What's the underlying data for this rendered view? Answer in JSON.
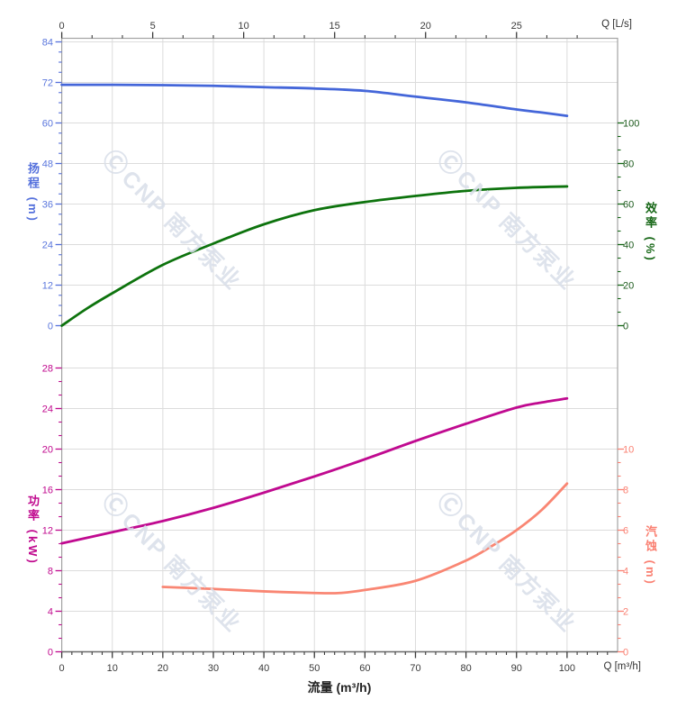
{
  "page": {
    "background": "#ffffff"
  },
  "watermark": {
    "logo_glyph": "Ⓒ",
    "text": "CNP 南方泵业",
    "color": "#d9dfe9"
  },
  "chart_data": {
    "type": "line",
    "title": "",
    "x_axis": {
      "bottom": {
        "title": "流量 (m³/h)",
        "unit_label": "Q [m³/h]",
        "major_ticks": [
          0,
          10,
          20,
          30,
          40,
          50,
          60,
          70,
          80,
          90,
          100
        ],
        "minor_step": 2,
        "range": [
          0,
          110
        ],
        "tick_color": "#3a3a3a",
        "label_color": "#3a3a3a"
      },
      "top": {
        "unit_label": "Q [L/s]",
        "major_ticks": [
          0,
          5,
          10,
          15,
          20,
          25
        ],
        "minor_step": 1.6667,
        "range": [
          0,
          30.6
        ],
        "ls_to_m3h": 3.6,
        "tick_color": "#3a3a3a",
        "label_color": "#3a3a3a"
      }
    },
    "panels": [
      {
        "name": "head-efficiency",
        "left_axis": {
          "title": "扬程 (m)",
          "quantity": "head",
          "unit": "m",
          "color": "#5470dc",
          "label_color": "#5b77dd",
          "major_ticks": [
            0,
            12,
            24,
            36,
            48,
            60,
            72,
            84
          ],
          "minor_step": 3,
          "range": [
            0,
            84
          ]
        },
        "right_axis": {
          "title": "效率 (%)",
          "quantity": "efficiency",
          "unit": "%",
          "color": "#156615",
          "label_color": "#1c5a1c",
          "major_ticks": [
            0,
            20,
            40,
            60,
            80,
            100
          ],
          "minor_step": 6.6667,
          "range": [
            0,
            100
          ]
        },
        "series": [
          {
            "name": "head",
            "axis": "left",
            "color": "#4466d9",
            "width": 2.8,
            "points": [
              [
                0,
                71.3
              ],
              [
                10,
                71.3
              ],
              [
                20,
                71.2
              ],
              [
                30,
                71.0
              ],
              [
                40,
                70.6
              ],
              [
                50,
                70.2
              ],
              [
                60,
                69.5
              ],
              [
                70,
                67.8
              ],
              [
                80,
                66.1
              ],
              [
                90,
                64.0
              ],
              [
                95,
                63.1
              ],
              [
                100,
                62.1
              ]
            ]
          },
          {
            "name": "efficiency",
            "axis": "right",
            "color": "#0d730d",
            "width": 2.8,
            "points": [
              [
                0,
                0
              ],
              [
                5,
                8.5
              ],
              [
                10,
                16
              ],
              [
                20,
                30
              ],
              [
                30,
                40.5
              ],
              [
                40,
                50
              ],
              [
                50,
                57
              ],
              [
                60,
                61
              ],
              [
                70,
                64
              ],
              [
                80,
                66.5
              ],
              [
                90,
                68
              ],
              [
                100,
                68.7
              ]
            ]
          }
        ]
      },
      {
        "name": "power-npsh",
        "left_axis": {
          "title": "功率 (kW)",
          "quantity": "power",
          "unit": "kW",
          "color": "#c0098e",
          "label_color": "#c0098e",
          "major_ticks": [
            0,
            4,
            8,
            12,
            16,
            20,
            24,
            28
          ],
          "minor_step": 1.3333,
          "range": [
            0,
            28
          ]
        },
        "right_axis": {
          "title": "汽蚀 (m)",
          "quantity": "npsh",
          "unit": "m",
          "color": "#fa8072",
          "label_color": "#fa8072",
          "major_ticks": [
            0,
            2,
            4,
            6,
            8,
            10
          ],
          "minor_step": 0.6667,
          "range": [
            0,
            10
          ]
        },
        "series": [
          {
            "name": "power",
            "axis": "left",
            "color": "#c00a90",
            "width": 2.8,
            "points": [
              [
                0,
                10.7
              ],
              [
                10,
                11.8
              ],
              [
                20,
                12.9
              ],
              [
                30,
                14.2
              ],
              [
                40,
                15.7
              ],
              [
                50,
                17.3
              ],
              [
                60,
                19.0
              ],
              [
                70,
                20.8
              ],
              [
                80,
                22.5
              ],
              [
                90,
                24.1
              ],
              [
                95,
                24.6
              ],
              [
                100,
                25.0
              ]
            ]
          },
          {
            "name": "npsh",
            "axis": "right",
            "color": "#f98673",
            "width": 2.8,
            "points": [
              [
                20,
                3.2
              ],
              [
                30,
                3.1
              ],
              [
                40,
                2.98
              ],
              [
                50,
                2.9
              ],
              [
                55,
                2.9
              ],
              [
                60,
                3.05
              ],
              [
                70,
                3.5
              ],
              [
                80,
                4.5
              ],
              [
                85,
                5.2
              ],
              [
                90,
                6.0
              ],
              [
                95,
                7.0
              ],
              [
                100,
                8.3
              ]
            ]
          }
        ]
      }
    ],
    "layout_hints": {
      "grid": "on",
      "legend": "none",
      "vertical_grid_step_m3h": 10,
      "horizontal_grid": "at major ticks of left axes"
    }
  }
}
